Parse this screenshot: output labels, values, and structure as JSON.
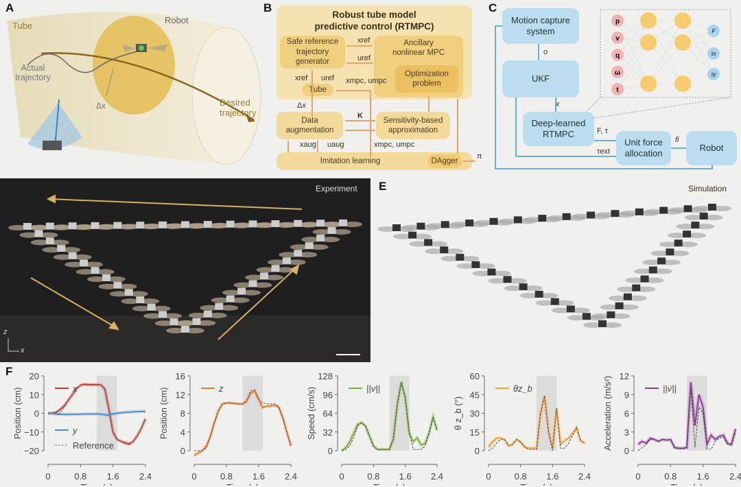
{
  "panels": {
    "a": "A",
    "b": "B",
    "c": "C",
    "d": "D",
    "e": "E",
    "f": "F"
  },
  "panel_a": {
    "tube": "Tube",
    "robot": "Robot",
    "actual": "Actual trajectory",
    "dx": "Δx",
    "desired": "Desired trajectory"
  },
  "panel_b": {
    "title1": "Robust tube model",
    "title2": "predictive control (RTMPC)",
    "safe_ref": "Safe reference trajectory generator",
    "ancillary": "Ancillary nonlinear MPC",
    "optimization": "Optimization problem",
    "tube": "Tube",
    "data_aug": "Data augmentation",
    "sensitivity": "Sensitivity-based approximation",
    "imitation": "Imitation learning",
    "dagger": "DAgger",
    "x_ref": "xref",
    "u_ref": "uref",
    "x_mpc_u_mpc": "xmpc, umpc",
    "dx": "Δx",
    "K": "K",
    "x_aug": "xaug",
    "u_aug": "uaug",
    "pi": "π",
    "colors": {
      "box": "#f3d99a",
      "inner": "#f0c970",
      "arrow": "#e8a468"
    }
  },
  "panel_c": {
    "mocap": "Motion capture system",
    "ukf": "UKF",
    "rtmpc": "Deep-learned RTMPC",
    "unit_force": "Unit force allocation",
    "robot": "Robot",
    "o": "o",
    "x": "x",
    "F_tau": "F, τ",
    "tau_ext": "τext",
    "f_i": "fi",
    "nn_inputs": [
      "p",
      "v",
      "q",
      "ω",
      "t"
    ],
    "nn_outputs": [
      "F",
      "τx",
      "τy"
    ],
    "colors": {
      "box": "#bcdcef",
      "arrow": "#6aaed6",
      "input": "#f2b3b0",
      "hidden": "#f6cc6e",
      "output": "#a9d3ec"
    }
  },
  "panel_d": {
    "label": "Experiment",
    "axis_z": "z",
    "axis_x": "x"
  },
  "panel_e": {
    "label": "Simulation"
  },
  "chart_data": [
    {
      "type": "line",
      "ylabel": "Position (cm)",
      "xlabel": "Time (s)",
      "xlim": [
        0,
        2.4
      ],
      "ylim": [
        -20,
        20
      ],
      "xticks": [
        "0",
        "0.8",
        "1.6",
        "2.4"
      ],
      "yticks": [
        "20",
        "10",
        "0",
        "−10",
        "−20"
      ],
      "shaded": [
        1.2,
        1.7
      ],
      "x": [
        0,
        0.1,
        0.2,
        0.3,
        0.4,
        0.5,
        0.6,
        0.7,
        0.8,
        0.9,
        1.0,
        1.1,
        1.2,
        1.3,
        1.4,
        1.5,
        1.6,
        1.7,
        1.8,
        1.9,
        2.0,
        2.1,
        2.2,
        2.3,
        2.4
      ],
      "series": [
        {
          "name": "x",
          "color": "#c0392b",
          "values": [
            0,
            0,
            0.5,
            2,
            4,
            7,
            10,
            13,
            15,
            15.5,
            15.3,
            15.3,
            15.3,
            15.2,
            13,
            2,
            -10,
            -14,
            -15,
            -16,
            -16.5,
            -15,
            -12,
            -8,
            -3
          ]
        },
        {
          "name": "y",
          "color": "#4a8ccc",
          "values": [
            0,
            0,
            -0.5,
            -0.6,
            -0.6,
            -0.6,
            -0.5,
            -0.5,
            -0.5,
            -0.4,
            -0.4,
            -0.4,
            -0.3,
            -0.5,
            -0.8,
            -1,
            -0.3,
            0,
            0.3,
            0.5,
            0.6,
            0.8,
            0.9,
            1,
            1
          ]
        },
        {
          "name": "Reference",
          "color": "#777",
          "dashed": true,
          "values": [
            0,
            0,
            0,
            0,
            3,
            7,
            10,
            13,
            15,
            15,
            15,
            15,
            15,
            15,
            13,
            2,
            -10,
            -14,
            -15,
            -15,
            -16,
            -15,
            -12,
            -8,
            -3
          ]
        }
      ]
    },
    {
      "type": "line",
      "ylabel": "Position (cm)",
      "xlabel": "Time (s)",
      "xlim": [
        0,
        2.4
      ],
      "ylim": [
        0,
        16
      ],
      "xticks": [
        "0",
        "0.8",
        "1.6",
        "2.4"
      ],
      "yticks": [
        "16",
        "12",
        "8",
        "4",
        "0"
      ],
      "shaded": [
        1.2,
        1.7
      ],
      "x": [
        0,
        0.1,
        0.2,
        0.3,
        0.4,
        0.5,
        0.6,
        0.7,
        0.8,
        0.9,
        1.0,
        1.1,
        1.2,
        1.3,
        1.4,
        1.5,
        1.6,
        1.7,
        1.8,
        1.9,
        2.0,
        2.1,
        2.2,
        2.3,
        2.4
      ],
      "series": [
        {
          "name": "z",
          "color": "#e07b2a",
          "values": [
            -1,
            -0.5,
            0,
            1,
            3,
            6,
            8.5,
            10,
            10.2,
            10.2,
            10.1,
            10,
            10,
            10.5,
            12.3,
            12.8,
            11,
            9.2,
            9.5,
            9.6,
            9.7,
            9.2,
            7,
            4,
            1
          ]
        },
        {
          "name": "",
          "color": "#555",
          "dashed": true,
          "values": [
            0,
            0,
            0,
            0.5,
            3,
            6,
            8.5,
            10,
            10.2,
            10.2,
            10.1,
            10,
            10,
            10.8,
            12.8,
            13,
            11,
            10.2,
            10.1,
            10,
            10,
            9.5,
            7,
            4,
            1
          ]
        }
      ]
    },
    {
      "type": "line",
      "ylabel": "Speed (cm/s)",
      "xlabel": "Time (s)",
      "xlim": [
        0,
        2.4
      ],
      "ylim": [
        0,
        128
      ],
      "xticks": [
        "0",
        "0.8",
        "1.6",
        "2.4"
      ],
      "yticks": [
        "128",
        "96",
        "64",
        "32",
        "0"
      ],
      "shaded": [
        1.2,
        1.7
      ],
      "x": [
        0,
        0.1,
        0.2,
        0.3,
        0.4,
        0.5,
        0.6,
        0.7,
        0.8,
        0.9,
        1.0,
        1.1,
        1.2,
        1.3,
        1.4,
        1.5,
        1.6,
        1.7,
        1.8,
        1.9,
        2.0,
        2.1,
        2.2,
        2.3,
        2.4
      ],
      "series": [
        {
          "name": "||v||",
          "color": "#7cad3a",
          "values": [
            0,
            5,
            15,
            30,
            45,
            48,
            42,
            25,
            8,
            2,
            2,
            2,
            2,
            20,
            80,
            118,
            90,
            30,
            15,
            22,
            10,
            12,
            30,
            58,
            35
          ]
        },
        {
          "name": "",
          "color": "#444",
          "dashed": true,
          "values": [
            0,
            2,
            8,
            22,
            42,
            48,
            42,
            25,
            8,
            2,
            2,
            2,
            2,
            20,
            80,
            116,
            90,
            30,
            2,
            2,
            2,
            8,
            30,
            56,
            35
          ]
        }
      ]
    },
    {
      "type": "line",
      "ylabel": "θ z_b (°)",
      "xlabel": "Time (s)",
      "xlim": [
        0,
        2.4
      ],
      "ylim": [
        0,
        60
      ],
      "xticks": [
        "0",
        "0.8",
        "1.6",
        "2.4"
      ],
      "yticks": [
        "60",
        "45",
        "30",
        "15",
        "0"
      ],
      "shaded": [
        1.2,
        1.7
      ],
      "x": [
        0,
        0.1,
        0.2,
        0.3,
        0.4,
        0.5,
        0.6,
        0.7,
        0.8,
        0.9,
        1.0,
        1.1,
        1.2,
        1.3,
        1.4,
        1.5,
        1.6,
        1.7,
        1.8,
        1.9,
        2.0,
        2.1,
        2.2,
        2.3,
        2.4
      ],
      "series": [
        {
          "name": "θz_b",
          "color": "#f0a030",
          "values": [
            3,
            7,
            10,
            10,
            9,
            4,
            5,
            9,
            7,
            3,
            2,
            2,
            2,
            30,
            44,
            15,
            2,
            34,
            5,
            8,
            10,
            14,
            18,
            8,
            6
          ]
        },
        {
          "name": "",
          "color": "#446",
          "dashed": true,
          "values": [
            0,
            2,
            6,
            9,
            9,
            4,
            5,
            9,
            7,
            3,
            1,
            1,
            1,
            30,
            44,
            15,
            0,
            34,
            2,
            2,
            6,
            12,
            19,
            8,
            6
          ]
        }
      ]
    },
    {
      "type": "line",
      "ylabel": "Acceleration (m/s²)",
      "xlabel": "Time (s)",
      "xlim": [
        0,
        2.4
      ],
      "ylim": [
        0,
        12
      ],
      "xticks": [
        "0",
        "0.8",
        "1.6",
        "2.4"
      ],
      "yticks": [
        "12",
        "9",
        "6",
        "3",
        "0"
      ],
      "shaded": [
        1.2,
        1.7
      ],
      "x": [
        0,
        0.1,
        0.2,
        0.3,
        0.4,
        0.5,
        0.6,
        0.7,
        0.8,
        0.9,
        1.0,
        1.1,
        1.2,
        1.3,
        1.4,
        1.5,
        1.6,
        1.7,
        1.8,
        1.9,
        2.0,
        2.1,
        2.2,
        2.3,
        2.4
      ],
      "series": [
        {
          "name": "||v̇||",
          "color": "#8e3a96",
          "values": [
            1,
            1.5,
            1.2,
            2,
            1.8,
            1.5,
            1.8,
            1.7,
            1.8,
            0.5,
            0.4,
            0.4,
            0.5,
            11,
            4,
            9,
            7,
            1,
            2.5,
            1.8,
            2.3,
            2.5,
            1.2,
            1,
            3.5
          ]
        },
        {
          "name": "",
          "color": "#444",
          "dashed": true,
          "values": [
            0,
            0.5,
            1,
            1.8,
            1.8,
            1.5,
            1.8,
            1.7,
            1.7,
            0.4,
            0.3,
            0.3,
            0.4,
            10,
            0.5,
            7,
            6,
            0.3,
            0.2,
            1.5,
            2,
            2.2,
            1,
            0.8,
            3
          ]
        }
      ]
    }
  ]
}
